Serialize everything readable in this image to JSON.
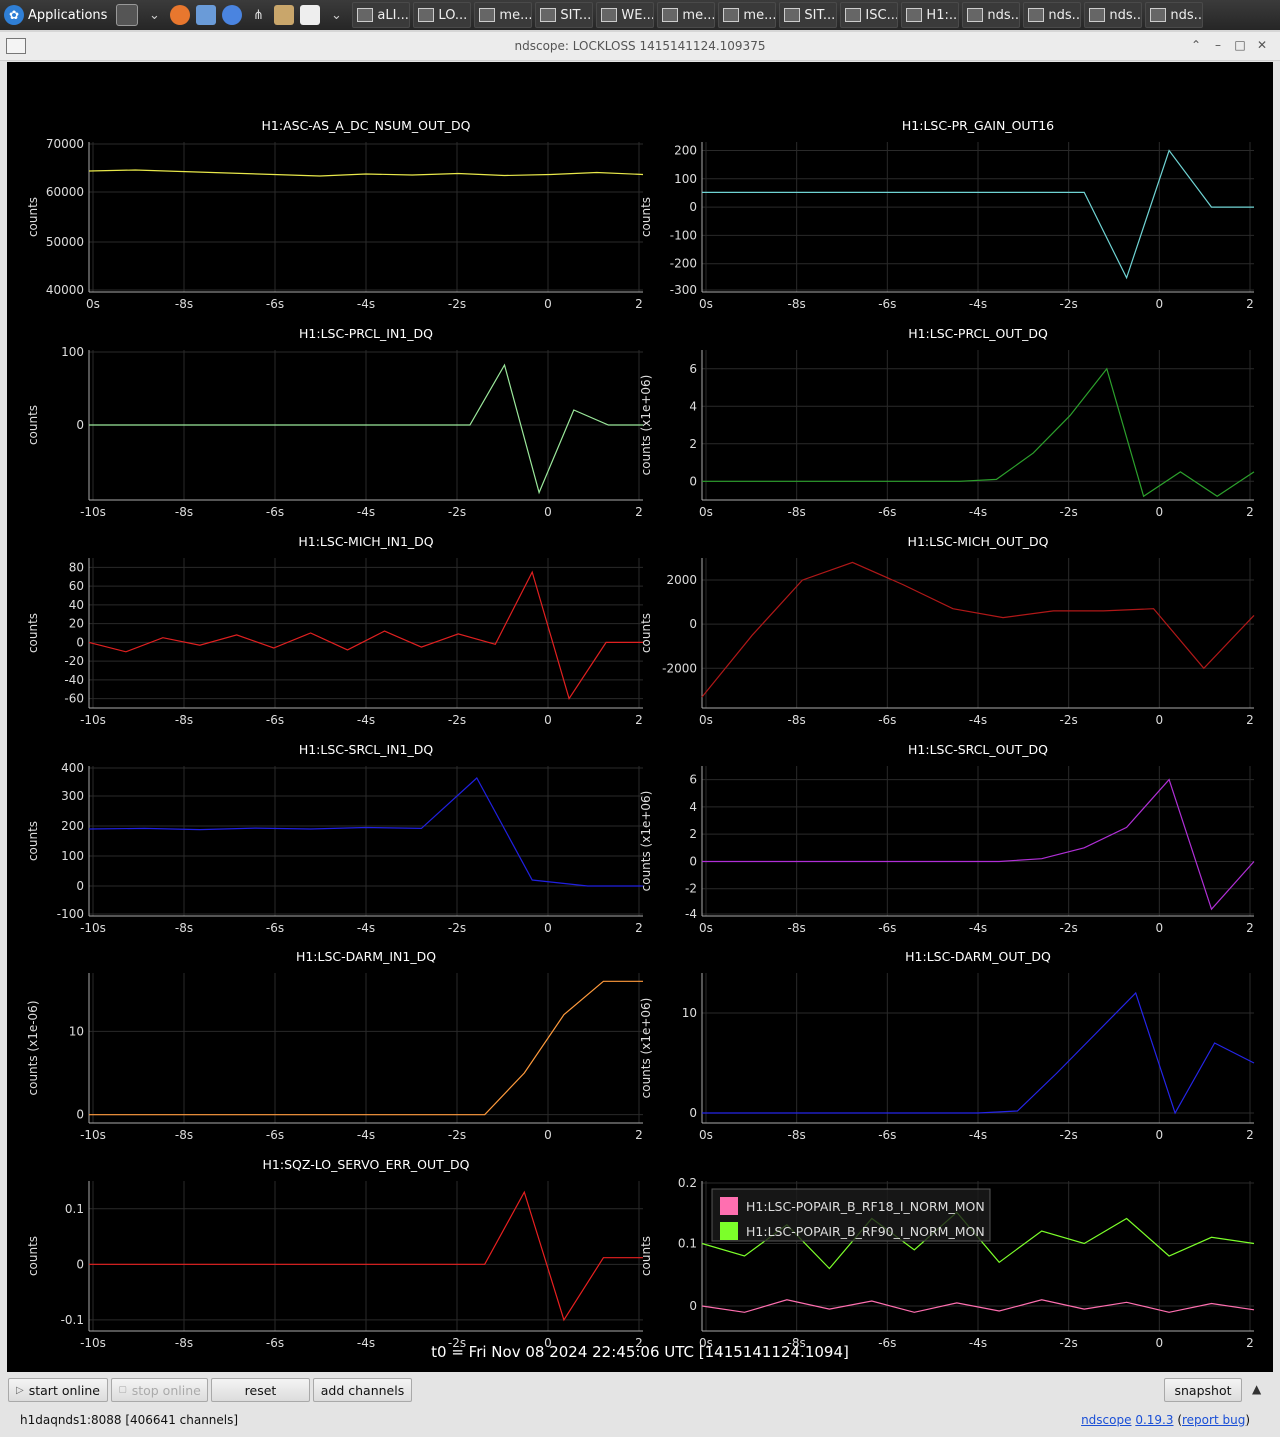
{
  "taskbar": {
    "apps_label": "Applications",
    "tasks": [
      "aLI...",
      "LO...",
      "me...",
      "SIT...",
      "WE...",
      "me...",
      "me...",
      "SIT...",
      "ISC...",
      "H1:...",
      "nds...",
      "nds...",
      "nds...",
      "nds..."
    ]
  },
  "window": {
    "title": "ndscope: LOCKLOSS 1415141124.109375"
  },
  "t0_label": "t0 = Fri Nov 08 2024 22:45:06 UTC [1415141124.1094]",
  "buttons": {
    "start_online": "start online",
    "stop_online": "stop online",
    "reset": "reset",
    "add_channels": "add channels",
    "snapshot": "snapshot"
  },
  "status": {
    "server": "h1daqnds1:8088  [406641 channels]",
    "app_name": "ndscope",
    "version": "0.19.3",
    "report": "report bug"
  },
  "chart_data": [
    {
      "type": "line",
      "title": "H1:ASC-AS_A_DC_NSUM_OUT_DQ",
      "ylabel": "counts",
      "ylim": [
        40000,
        70000
      ],
      "yticks": [
        "70000",
        "60000",
        "50000",
        "40000"
      ],
      "xticks": [
        "0s",
        "-8s",
        "-6s",
        "-4s",
        "-2s",
        "0",
        "2"
      ],
      "series": [
        {
          "color": "#e8e84a",
          "values": [
            64200,
            64400,
            64100,
            63800,
            63500,
            63200,
            63600,
            63400,
            63700,
            63300,
            63500,
            63900,
            63500
          ]
        }
      ]
    },
    {
      "type": "line",
      "title": "H1:LSC-PR_GAIN_OUT16",
      "ylabel": "counts",
      "ylim": [
        -300,
        230
      ],
      "yticks": [
        "200",
        "100",
        "0",
        "-100",
        "-200",
        "-300"
      ],
      "xticks": [
        "0s",
        "-8s",
        "-6s",
        "-4s",
        "-2s",
        "0",
        "2"
      ],
      "series": [
        {
          "color": "#6fd3d3",
          "values": [
            52,
            52,
            52,
            52,
            52,
            52,
            52,
            52,
            52,
            52,
            -250,
            200,
            0,
            0
          ]
        }
      ]
    },
    {
      "type": "line",
      "title": "H1:LSC-PRCL_IN1_DQ",
      "ylabel": "counts",
      "ylim": [
        -100,
        100
      ],
      "yticks": [
        "0",
        "100"
      ],
      "xticks": [
        "-10s",
        "-8s",
        "-6s",
        "-4s",
        "-2s",
        "0",
        "2"
      ],
      "series": [
        {
          "color": "#9be89b",
          "values": [
            0,
            0,
            0,
            0,
            0,
            0,
            0,
            0,
            0,
            0,
            0,
            0,
            80,
            -90,
            20,
            0,
            0
          ]
        }
      ]
    },
    {
      "type": "line",
      "title": "H1:LSC-PRCL_OUT_DQ",
      "ylabel": "counts (x1e+06)",
      "ylim": [
        -1,
        7
      ],
      "yticks": [
        "6",
        "4",
        "2",
        "0"
      ],
      "xticks": [
        "0s",
        "-8s",
        "-6s",
        "-4s",
        "-2s",
        "0",
        "2"
      ],
      "series": [
        {
          "color": "#2ca02c",
          "values": [
            0,
            0,
            0,
            0,
            0,
            0,
            0,
            0,
            0.1,
            1.5,
            3.5,
            6,
            -0.8,
            0.5,
            -0.8,
            0.5
          ]
        }
      ]
    },
    {
      "type": "line",
      "title": "H1:LSC-MICH_IN1_DQ",
      "ylabel": "counts",
      "ylim": [
        -70,
        90
      ],
      "yticks": [
        "80",
        "60",
        "40",
        "20",
        "0",
        "-20",
        "-40",
        "-60"
      ],
      "xticks": [
        "-10s",
        "-8s",
        "-6s",
        "-4s",
        "-2s",
        "0",
        "2"
      ],
      "series": [
        {
          "color": "#e02020",
          "values": [
            0,
            -10,
            5,
            -3,
            8,
            -6,
            10,
            -8,
            12,
            -5,
            9,
            -2,
            75,
            -60,
            0,
            0
          ]
        }
      ]
    },
    {
      "type": "line",
      "title": "H1:LSC-MICH_OUT_DQ",
      "ylabel": "counts",
      "ylim": [
        -3800,
        3000
      ],
      "yticks": [
        "2000",
        "0",
        "-2000"
      ],
      "xticks": [
        "0s",
        "-8s",
        "-6s",
        "-4s",
        "-2s",
        "0",
        "2"
      ],
      "series": [
        {
          "color": "#b01818",
          "values": [
            -3300,
            -500,
            2000,
            2800,
            1800,
            700,
            300,
            600,
            600,
            700,
            -2000,
            400
          ]
        }
      ]
    },
    {
      "type": "line",
      "title": "H1:LSC-SRCL_IN1_DQ",
      "ylabel": "counts",
      "ylim": [
        -100,
        400
      ],
      "yticks": [
        "400",
        "300",
        "200",
        "100",
        "0",
        "-100"
      ],
      "xticks": [
        "-10s",
        "-8s",
        "-6s",
        "-4s",
        "-2s",
        "0",
        "2"
      ],
      "series": [
        {
          "color": "#2020e0",
          "values": [
            190,
            192,
            188,
            193,
            190,
            195,
            192,
            360,
            20,
            0,
            0
          ]
        }
      ]
    },
    {
      "type": "line",
      "title": "H1:LSC-SRCL_OUT_DQ",
      "ylabel": "counts (x1e+06)",
      "ylim": [
        -4,
        7
      ],
      "yticks": [
        "6",
        "4",
        "2",
        "0",
        "-2",
        "-4"
      ],
      "xticks": [
        "0s",
        "-8s",
        "-6s",
        "-4s",
        "-2s",
        "0",
        "2"
      ],
      "series": [
        {
          "color": "#b02fd6",
          "values": [
            0,
            0,
            0,
            0,
            0,
            0,
            0,
            0,
            0.2,
            1,
            2.5,
            6,
            -3.5,
            0
          ]
        }
      ]
    },
    {
      "type": "line",
      "title": "H1:LSC-DARM_IN1_DQ",
      "ylabel": "counts (x1e-06)",
      "ylim": [
        -1,
        17
      ],
      "yticks": [
        "10",
        "0"
      ],
      "xticks": [
        "-10s",
        "-8s",
        "-6s",
        "-4s",
        "-2s",
        "0",
        "2"
      ],
      "series": [
        {
          "color": "#ff9a3c",
          "values": [
            0,
            0,
            0,
            0,
            0,
            0,
            0,
            0,
            0,
            0,
            0,
            5,
            12,
            16,
            16
          ]
        }
      ]
    },
    {
      "type": "line",
      "title": "H1:LSC-DARM_OUT_DQ",
      "ylabel": "counts (x1e+06)",
      "ylim": [
        -1,
        14
      ],
      "yticks": [
        "10",
        "0"
      ],
      "xticks": [
        "0s",
        "-8s",
        "-6s",
        "-4s",
        "-2s",
        "0",
        "2"
      ],
      "series": [
        {
          "color": "#2525e8",
          "values": [
            0,
            0,
            0,
            0,
            0,
            0,
            0,
            0,
            0.2,
            4,
            8,
            12,
            0,
            7,
            5
          ]
        }
      ]
    },
    {
      "type": "line",
      "title": "H1:SQZ-LO_SERVO_ERR_OUT_DQ",
      "ylabel": "counts",
      "ylim": [
        -0.12,
        0.15
      ],
      "yticks": [
        "0.1",
        "0",
        "-0.1"
      ],
      "xticks": [
        "-10s",
        "-8s",
        "-6s",
        "-4s",
        "-2s",
        "0",
        "2"
      ],
      "series": [
        {
          "color": "#e82020",
          "values": [
            0,
            0,
            0,
            0,
            0,
            0,
            0,
            0,
            0,
            0,
            0,
            0.13,
            -0.1,
            0.012,
            0.012
          ]
        }
      ]
    },
    {
      "type": "line",
      "title": "",
      "ylabel": "counts",
      "ylim": [
        -0.04,
        0.2
      ],
      "yticks": [
        "0.2",
        "0.1",
        "0"
      ],
      "xticks": [
        "0s",
        "-8s",
        "-6s",
        "-4s",
        "-2s",
        "0",
        "2"
      ],
      "legend": [
        "H1:LSC-POPAIR_B_RF18_I_NORM_MON",
        "H1:LSC-POPAIR_B_RF90_I_NORM_MON"
      ],
      "series": [
        {
          "name": "H1:LSC-POPAIR_B_RF18_I_NORM_MON",
          "color": "#ff6fb0",
          "values": [
            0,
            -0.01,
            0.01,
            -0.005,
            0.008,
            -0.01,
            0.005,
            -0.008,
            0.01,
            -0.005,
            0.006,
            -0.01,
            0.004,
            -0.006
          ]
        },
        {
          "name": "H1:LSC-POPAIR_B_RF90_I_NORM_MON",
          "color": "#7cff2a",
          "values": [
            0.1,
            0.08,
            0.13,
            0.06,
            0.14,
            0.09,
            0.15,
            0.07,
            0.12,
            0.1,
            0.14,
            0.08,
            0.11,
            0.1
          ]
        }
      ]
    }
  ]
}
